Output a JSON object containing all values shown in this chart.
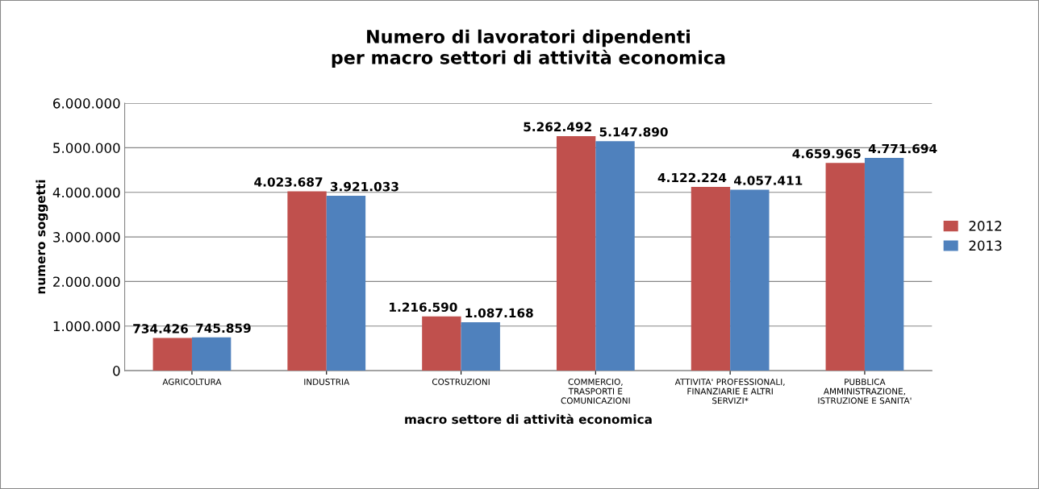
{
  "chart_data": {
    "type": "bar",
    "title": "Numero di lavoratori dipendenti\nper macro settori di attività economica",
    "xlabel": "macro settore di attività economica",
    "ylabel": "numero soggetti",
    "categories": [
      "AGRICOLTURA",
      "INDUSTRIA",
      "COSTRUZIONI",
      "COMMERCIO,\nTRASPORTI E\nCOMUNICAZIONI",
      "ATTIVITA' PROFESSIONALI,\nFINANZIARIE E ALTRI\nSERVIZI*",
      "PUBBLICA\nAMMINISTRAZIONE,\nISTRUZIONE E SANITA'"
    ],
    "series": [
      {
        "name": "2012",
        "color": "#c0504d",
        "values": [
          734426,
          4023687,
          1216590,
          5262492,
          4122224,
          4659965
        ],
        "value_labels": [
          "734.426",
          "4.023.687",
          "1.216.590",
          "5.262.492",
          "4.122.224",
          "4.659.965"
        ]
      },
      {
        "name": "2013",
        "color": "#4f81bd",
        "values": [
          745859,
          3921033,
          1087168,
          5147890,
          4057411,
          4771694
        ],
        "value_labels": [
          "745.859",
          "3.921.033",
          "1.087.168",
          "5.147.890",
          "4.057.411",
          "4.771.694"
        ]
      }
    ],
    "ylim": [
      0,
      6000000
    ],
    "yticks": [
      0,
      {
        "value": 1000000,
        "label": "1.000.000"
      },
      {
        "value": 2000000,
        "label": "2.000.000"
      },
      {
        "value": 3000000,
        "label": "3.000.000"
      },
      {
        "value": 4000000,
        "label": "4.000.000"
      },
      {
        "value": 5000000,
        "label": "5.000.000"
      },
      {
        "value": 6000000,
        "label": "6.000.000"
      }
    ],
    "grid": "y",
    "legend": "right"
  }
}
